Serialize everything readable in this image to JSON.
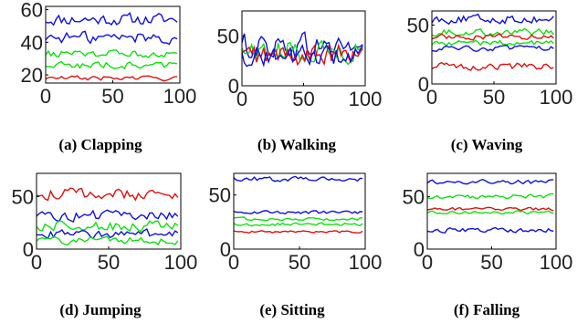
{
  "colors": {
    "blue": "#1010e0",
    "green": "#10e010",
    "red": "#e01010"
  },
  "chart_data": [
    {
      "type": "line",
      "title": "(a) Clapping",
      "xlim": [
        0,
        100
      ],
      "ylim": [
        15,
        62
      ],
      "xticks": [
        0,
        50,
        100
      ],
      "yticks": [
        20,
        40,
        60
      ],
      "xlabel": "",
      "ylabel": "",
      "grid": false,
      "legend": "none",
      "series": [
        {
          "color": "blue",
          "base": 54,
          "noise": 5,
          "values": []
        },
        {
          "color": "blue",
          "base": 43,
          "noise": 5,
          "values": []
        },
        {
          "color": "green",
          "base": 33,
          "noise": 3,
          "values": []
        },
        {
          "color": "green",
          "base": 26,
          "noise": 3,
          "values": []
        },
        {
          "color": "red",
          "base": 18,
          "noise": 2,
          "values": []
        }
      ]
    },
    {
      "type": "line",
      "title": "(b) Walking",
      "xlim": [
        0,
        100
      ],
      "ylim": [
        0,
        75
      ],
      "xticks": [
        0,
        50,
        100
      ],
      "yticks": [
        0,
        50
      ],
      "xlabel": "",
      "ylabel": "",
      "grid": false,
      "legend": "none",
      "series": [
        {
          "color": "blue",
          "base": 40,
          "noise": 18,
          "values": []
        },
        {
          "color": "green",
          "base": 35,
          "noise": 15,
          "values": []
        },
        {
          "color": "red",
          "base": 30,
          "noise": 15,
          "values": []
        },
        {
          "color": "blue",
          "base": 30,
          "noise": 14,
          "values": []
        }
      ]
    },
    {
      "type": "line",
      "title": "(c) Waving",
      "xlim": [
        0,
        100
      ],
      "ylim": [
        0,
        62
      ],
      "xticks": [
        0,
        50,
        100
      ],
      "yticks": [
        0,
        50
      ],
      "xlabel": "",
      "ylabel": "",
      "grid": false,
      "legend": "none",
      "series": [
        {
          "color": "blue",
          "base": 55,
          "noise": 5,
          "values": []
        },
        {
          "color": "green",
          "base": 44,
          "noise": 4,
          "values": []
        },
        {
          "color": "red",
          "base": 40,
          "noise": 3,
          "values": []
        },
        {
          "color": "green",
          "base": 35,
          "noise": 3,
          "values": []
        },
        {
          "color": "blue",
          "base": 30,
          "noise": 3,
          "values": []
        },
        {
          "color": "red",
          "base": 15,
          "noise": 4,
          "values": []
        }
      ]
    },
    {
      "type": "line",
      "title": "(d) Jumping",
      "xlim": [
        0,
        100
      ],
      "ylim": [
        0,
        72
      ],
      "xticks": [
        0,
        50,
        100
      ],
      "yticks": [
        0,
        50
      ],
      "xlabel": "",
      "ylabel": "",
      "grid": false,
      "legend": "none",
      "series": [
        {
          "color": "red",
          "base": 52,
          "noise": 8,
          "values": []
        },
        {
          "color": "blue",
          "base": 32,
          "noise": 7,
          "values": []
        },
        {
          "color": "green",
          "base": 22,
          "noise": 7,
          "values": []
        },
        {
          "color": "blue",
          "base": 14,
          "noise": 6,
          "values": []
        },
        {
          "color": "green",
          "base": 8,
          "noise": 5,
          "values": []
        }
      ]
    },
    {
      "type": "line",
      "title": "(e) Sitting",
      "xlim": [
        0,
        100
      ],
      "ylim": [
        0,
        70
      ],
      "xticks": [
        0,
        50,
        100
      ],
      "yticks": [
        0,
        50
      ],
      "xlabel": "",
      "ylabel": "",
      "grid": false,
      "legend": "none",
      "series": [
        {
          "color": "blue",
          "base": 65,
          "noise": 3,
          "values": []
        },
        {
          "color": "blue",
          "base": 34,
          "noise": 2,
          "values": []
        },
        {
          "color": "green",
          "base": 28,
          "noise": 2,
          "values": []
        },
        {
          "color": "green",
          "base": 23,
          "noise": 2,
          "values": []
        },
        {
          "color": "red",
          "base": 16,
          "noise": 1.5,
          "values": []
        }
      ]
    },
    {
      "type": "line",
      "title": "(f) Falling",
      "xlim": [
        0,
        100
      ],
      "ylim": [
        0,
        72
      ],
      "xticks": [
        0,
        50,
        100
      ],
      "yticks": [
        0,
        50
      ],
      "xlabel": "",
      "ylabel": "",
      "grid": false,
      "legend": "none",
      "series": [
        {
          "color": "blue",
          "base": 64,
          "noise": 3,
          "values": []
        },
        {
          "color": "green",
          "base": 50,
          "noise": 3,
          "values": []
        },
        {
          "color": "red",
          "base": 38,
          "noise": 2,
          "values": []
        },
        {
          "color": "green",
          "base": 35,
          "noise": 2,
          "values": []
        },
        {
          "color": "blue",
          "base": 18,
          "noise": 3,
          "values": []
        }
      ]
    }
  ]
}
